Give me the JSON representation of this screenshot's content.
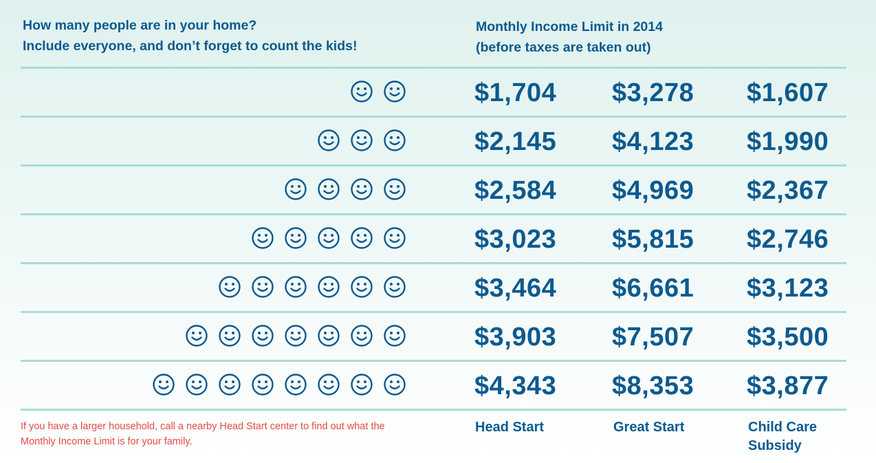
{
  "header": {
    "question_line1": "How many people are in your home?",
    "question_line2": "Include everyone, and don’t forget to count the kids!",
    "limit_line1": "Monthly Income Limit in 2014",
    "limit_line2": "(before taxes are taken out)"
  },
  "icons": {
    "person": "smiley-face-icon"
  },
  "rows": [
    {
      "people": 2,
      "head_start": "$1,704",
      "great_start": "$3,278",
      "child_care": "$1,607"
    },
    {
      "people": 3,
      "head_start": "$2,145",
      "great_start": "$4,123",
      "child_care": "$1,990"
    },
    {
      "people": 4,
      "head_start": "$2,584",
      "great_start": "$4,969",
      "child_care": "$2,367"
    },
    {
      "people": 5,
      "head_start": "$3,023",
      "great_start": "$5,815",
      "child_care": "$2,746"
    },
    {
      "people": 6,
      "head_start": "$3,464",
      "great_start": "$6,661",
      "child_care": "$3,123"
    },
    {
      "people": 7,
      "head_start": "$3,903",
      "great_start": "$7,507",
      "child_care": "$3,500"
    },
    {
      "people": 8,
      "head_start": "$4,343",
      "great_start": "$8,353",
      "child_care": "$3,877"
    }
  ],
  "footer": {
    "note_line1": "If you have a larger household, call a nearby Head Start center to find out what the",
    "note_line2": "Monthly Income Limit is for your family.",
    "program1": "Head Start",
    "program2": "Great Start",
    "program3_line1": "Child Care",
    "program3_line2": "Subsidy"
  },
  "colors": {
    "text": "#0d5a8f",
    "divider": "#a9dcd4",
    "note": "#e24b46"
  }
}
